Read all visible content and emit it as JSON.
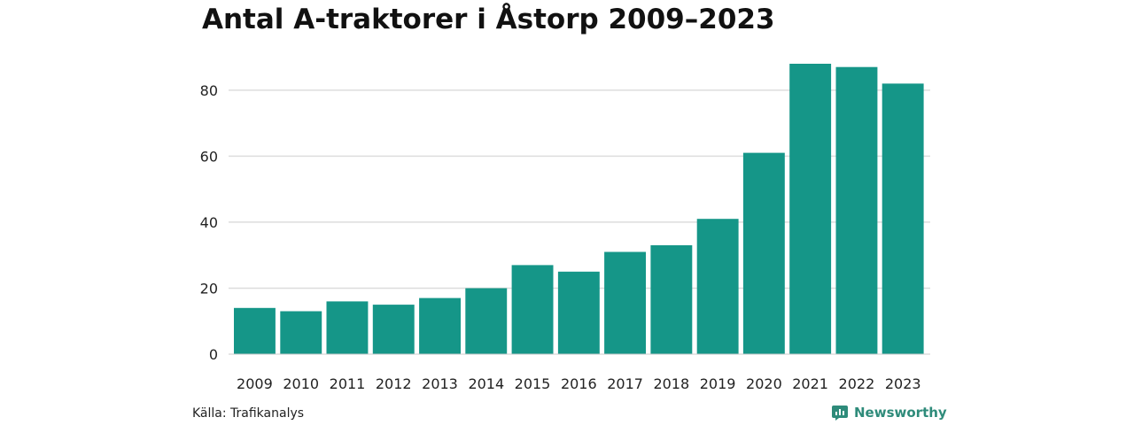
{
  "chart_data": {
    "type": "bar",
    "title": "Antal A-traktorer i Åstorp 2009–2023",
    "categories": [
      "2009",
      "2010",
      "2011",
      "2012",
      "2013",
      "2014",
      "2015",
      "2016",
      "2017",
      "2018",
      "2019",
      "2020",
      "2021",
      "2022",
      "2023"
    ],
    "values": [
      14,
      13,
      16,
      15,
      17,
      20,
      27,
      25,
      31,
      33,
      41,
      61,
      88,
      87,
      82
    ],
    "yticks": [
      0,
      20,
      40,
      60,
      80
    ],
    "ylim": [
      0,
      88
    ],
    "xlabel": "",
    "ylabel": "",
    "grid": true,
    "bar_color": "#159688",
    "grid_color": "#dddddd"
  },
  "footer": {
    "source": "Källa: Trafikanalys",
    "brand": "Newsworthy",
    "brand_color": "#2e8b7a"
  }
}
